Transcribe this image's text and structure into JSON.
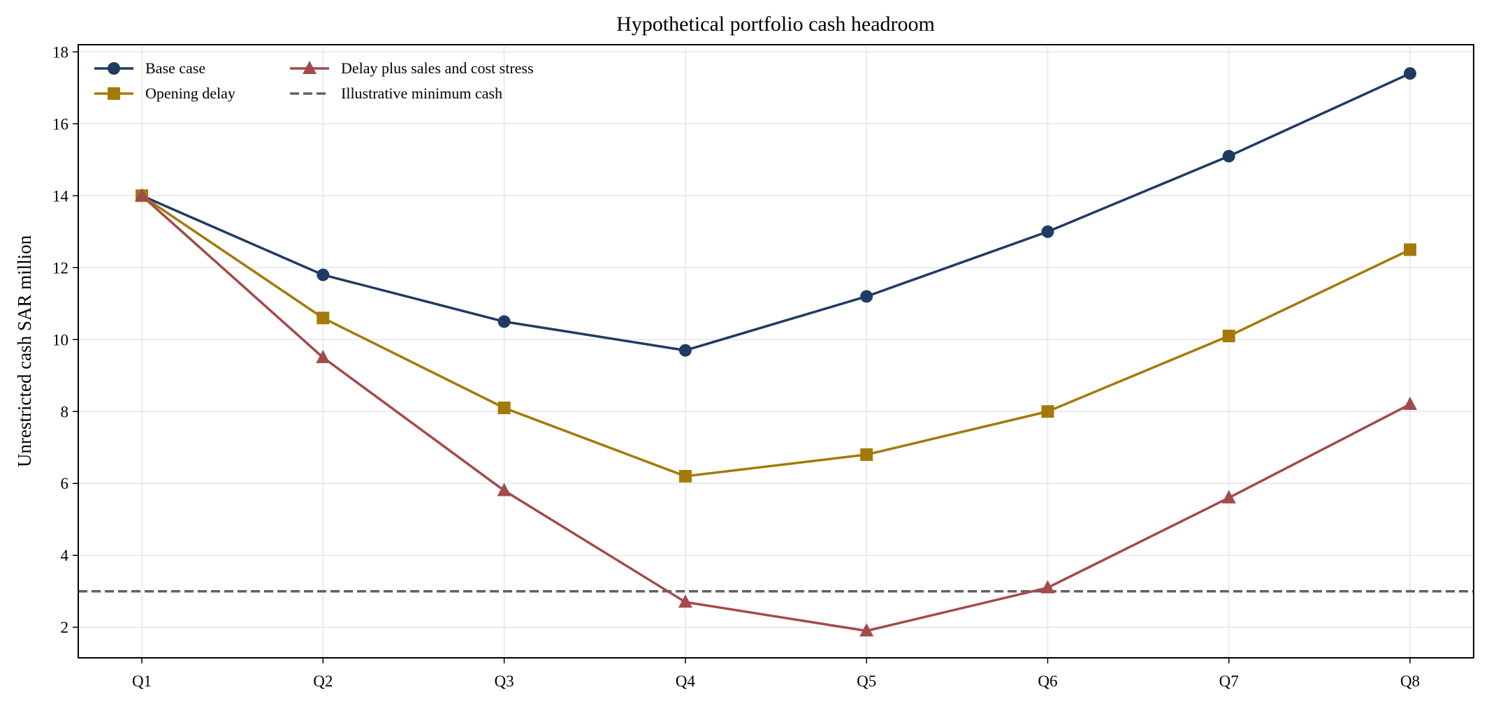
{
  "chart_data": {
    "type": "line",
    "title": "Hypothetical portfolio cash headroom",
    "xlabel": "",
    "ylabel": "Unrestricted cash SAR million",
    "categories": [
      "Q1",
      "Q2",
      "Q3",
      "Q4",
      "Q5",
      "Q6",
      "Q7",
      "Q8"
    ],
    "ylim": [
      1.15,
      18.2
    ],
    "yticks": [
      2,
      4,
      6,
      8,
      10,
      12,
      14,
      16,
      18
    ],
    "grid": true,
    "legend_position": "top-left",
    "series": [
      {
        "name": "Base case",
        "marker": "circle",
        "color": "#1f3b63",
        "values": [
          14.0,
          11.8,
          10.5,
          9.7,
          11.2,
          13.0,
          15.1,
          17.4
        ]
      },
      {
        "name": "Opening delay",
        "marker": "square",
        "color": "#a37a08",
        "values": [
          14.0,
          10.6,
          8.1,
          6.2,
          6.8,
          8.0,
          10.1,
          12.5
        ]
      },
      {
        "name": "Delay plus sales and cost stress",
        "marker": "triangle",
        "color": "#a34a4a",
        "values": [
          14.0,
          9.5,
          5.8,
          2.7,
          1.9,
          3.1,
          5.6,
          8.2
        ]
      }
    ],
    "reference_lines": [
      {
        "name": "Illustrative minimum cash",
        "y": 3,
        "style": "dashed",
        "color": "#616161"
      }
    ]
  }
}
